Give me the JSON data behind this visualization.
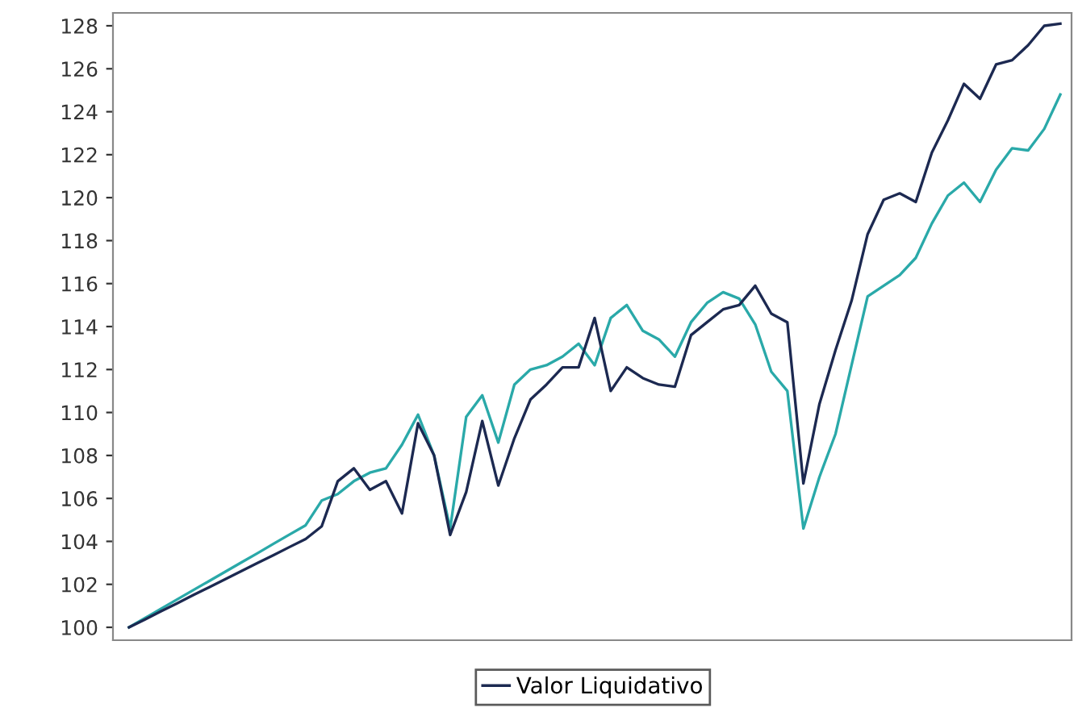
{
  "chart_data": {
    "type": "line",
    "categories": [
      null,
      null,
      null,
      null,
      null,
      null,
      null,
      null,
      null,
      null,
      null,
      null,
      null,
      null,
      null,
      null,
      null,
      null,
      null,
      null,
      null,
      null,
      null,
      null,
      null,
      null,
      null,
      null,
      null,
      null,
      null,
      null,
      null,
      null,
      null,
      null,
      null,
      null,
      null,
      null,
      null,
      null,
      null,
      null,
      null,
      null,
      null,
      null,
      null,
      null,
      null,
      null,
      null,
      null,
      null,
      null,
      null,
      null,
      null
    ],
    "series": [
      {
        "color": "#2aa9a9",
        "values": [
          100,
          100.43,
          100.87,
          101.3,
          101.73,
          102.16,
          102.59,
          103.02,
          103.45,
          103.89,
          104.32,
          104.75,
          105.9,
          106.2,
          106.8,
          107.2,
          107.4,
          108.5,
          109.9,
          108.0,
          104.6,
          109.8,
          110.8,
          108.6,
          111.3,
          112.0,
          112.2,
          112.6,
          113.2,
          112.2,
          114.4,
          115.0,
          113.8,
          113.4,
          112.6,
          114.2,
          115.1,
          115.6,
          115.3,
          114.1,
          111.9,
          111.0,
          104.6,
          107.0,
          109.0,
          112.2,
          115.4,
          115.9,
          116.4,
          117.2,
          118.8,
          120.1,
          120.7,
          119.8,
          121.3,
          122.3,
          122.2,
          123.2,
          124.8
        ]
      },
      {
        "name": "Valor Liquidativo",
        "color": "#1c2951",
        "values": [
          100,
          100.37,
          100.75,
          101.12,
          101.5,
          101.87,
          102.24,
          102.62,
          102.99,
          103.36,
          103.74,
          104.11,
          104.7,
          106.8,
          107.4,
          106.4,
          106.8,
          105.3,
          109.5,
          108.0,
          104.3,
          106.3,
          109.6,
          106.6,
          108.8,
          110.6,
          111.3,
          112.1,
          112.1,
          114.4,
          111.0,
          112.1,
          111.6,
          111.3,
          111.2,
          113.6,
          114.2,
          114.8,
          115.0,
          115.9,
          114.6,
          114.2,
          106.7,
          110.4,
          112.9,
          115.2,
          118.3,
          119.9,
          120.2,
          119.8,
          122.1,
          123.6,
          125.3,
          124.6,
          126.2,
          126.4,
          127.1,
          128.0,
          128.1
        ]
      }
    ],
    "ylim": [
      99.4,
      128.6
    ],
    "yticks": [
      100,
      102,
      104,
      106,
      108,
      110,
      112,
      114,
      116,
      118,
      120,
      122,
      124,
      126,
      128
    ],
    "tick_labels": "y",
    "grid": false,
    "legend": "bottom"
  }
}
